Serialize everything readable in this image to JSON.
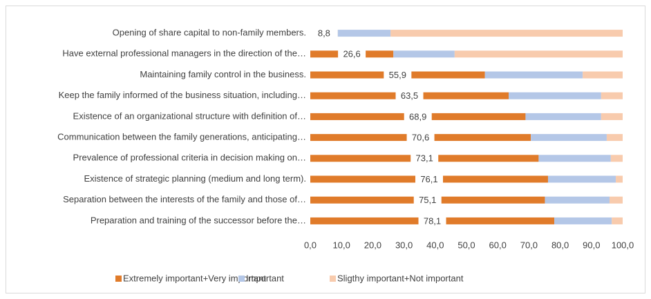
{
  "chart_data": {
    "type": "stacked_barh",
    "categories": [
      "Opening of share capital to non-family members.",
      "Have external professional managers in the direction of the…",
      "Maintaining family control in the business.",
      "Keep the family informed of the business situation, including…",
      "Existence of an organizational structure with definition of…",
      "Communication between the family generations, anticipating…",
      "Prevalence of professional criteria in decision making on…",
      "Existence of strategic planning (medium and long term).",
      "Separation between the interests of the family and those of…",
      "Preparation and training of the successor before the…"
    ],
    "series": [
      {
        "name": "Extremely important+Very important",
        "color": "#e07b2a",
        "values": [
          8.8,
          26.6,
          55.9,
          63.5,
          68.9,
          70.6,
          73.1,
          76.1,
          75.1,
          78.1
        ],
        "value_labels": [
          "8,8",
          "26,6",
          "55,9",
          "63,5",
          "68,9",
          "70,6",
          "73,1",
          "76,1",
          "75,1",
          "78,1"
        ]
      },
      {
        "name": "Important",
        "color": "#b4c7e7",
        "values": [
          16.9,
          19.6,
          31.3,
          29.6,
          24.2,
          24.3,
          23.1,
          21.7,
          20.7,
          18.4
        ]
      },
      {
        "name": "Sligthy important+Not important",
        "color": "#f8cbad",
        "values": [
          74.3,
          53.8,
          12.8,
          6.9,
          6.9,
          5.1,
          3.8,
          2.2,
          4.2,
          3.5
        ]
      }
    ],
    "xlim": [
      0,
      100
    ],
    "xticks": [
      {
        "value": 0,
        "label": "0,0"
      },
      {
        "value": 10,
        "label": "10,0"
      },
      {
        "value": 20,
        "label": "20,0"
      },
      {
        "value": 30,
        "label": "30,0"
      },
      {
        "value": 40,
        "label": "40,0"
      },
      {
        "value": 50,
        "label": "50,0"
      },
      {
        "value": 60,
        "label": "60,0"
      },
      {
        "value": 70,
        "label": "70,0"
      },
      {
        "value": 80,
        "label": "80,0"
      },
      {
        "value": 90,
        "label": "90,0"
      },
      {
        "value": 100,
        "label": "100,0"
      }
    ],
    "legend": "bottom"
  }
}
